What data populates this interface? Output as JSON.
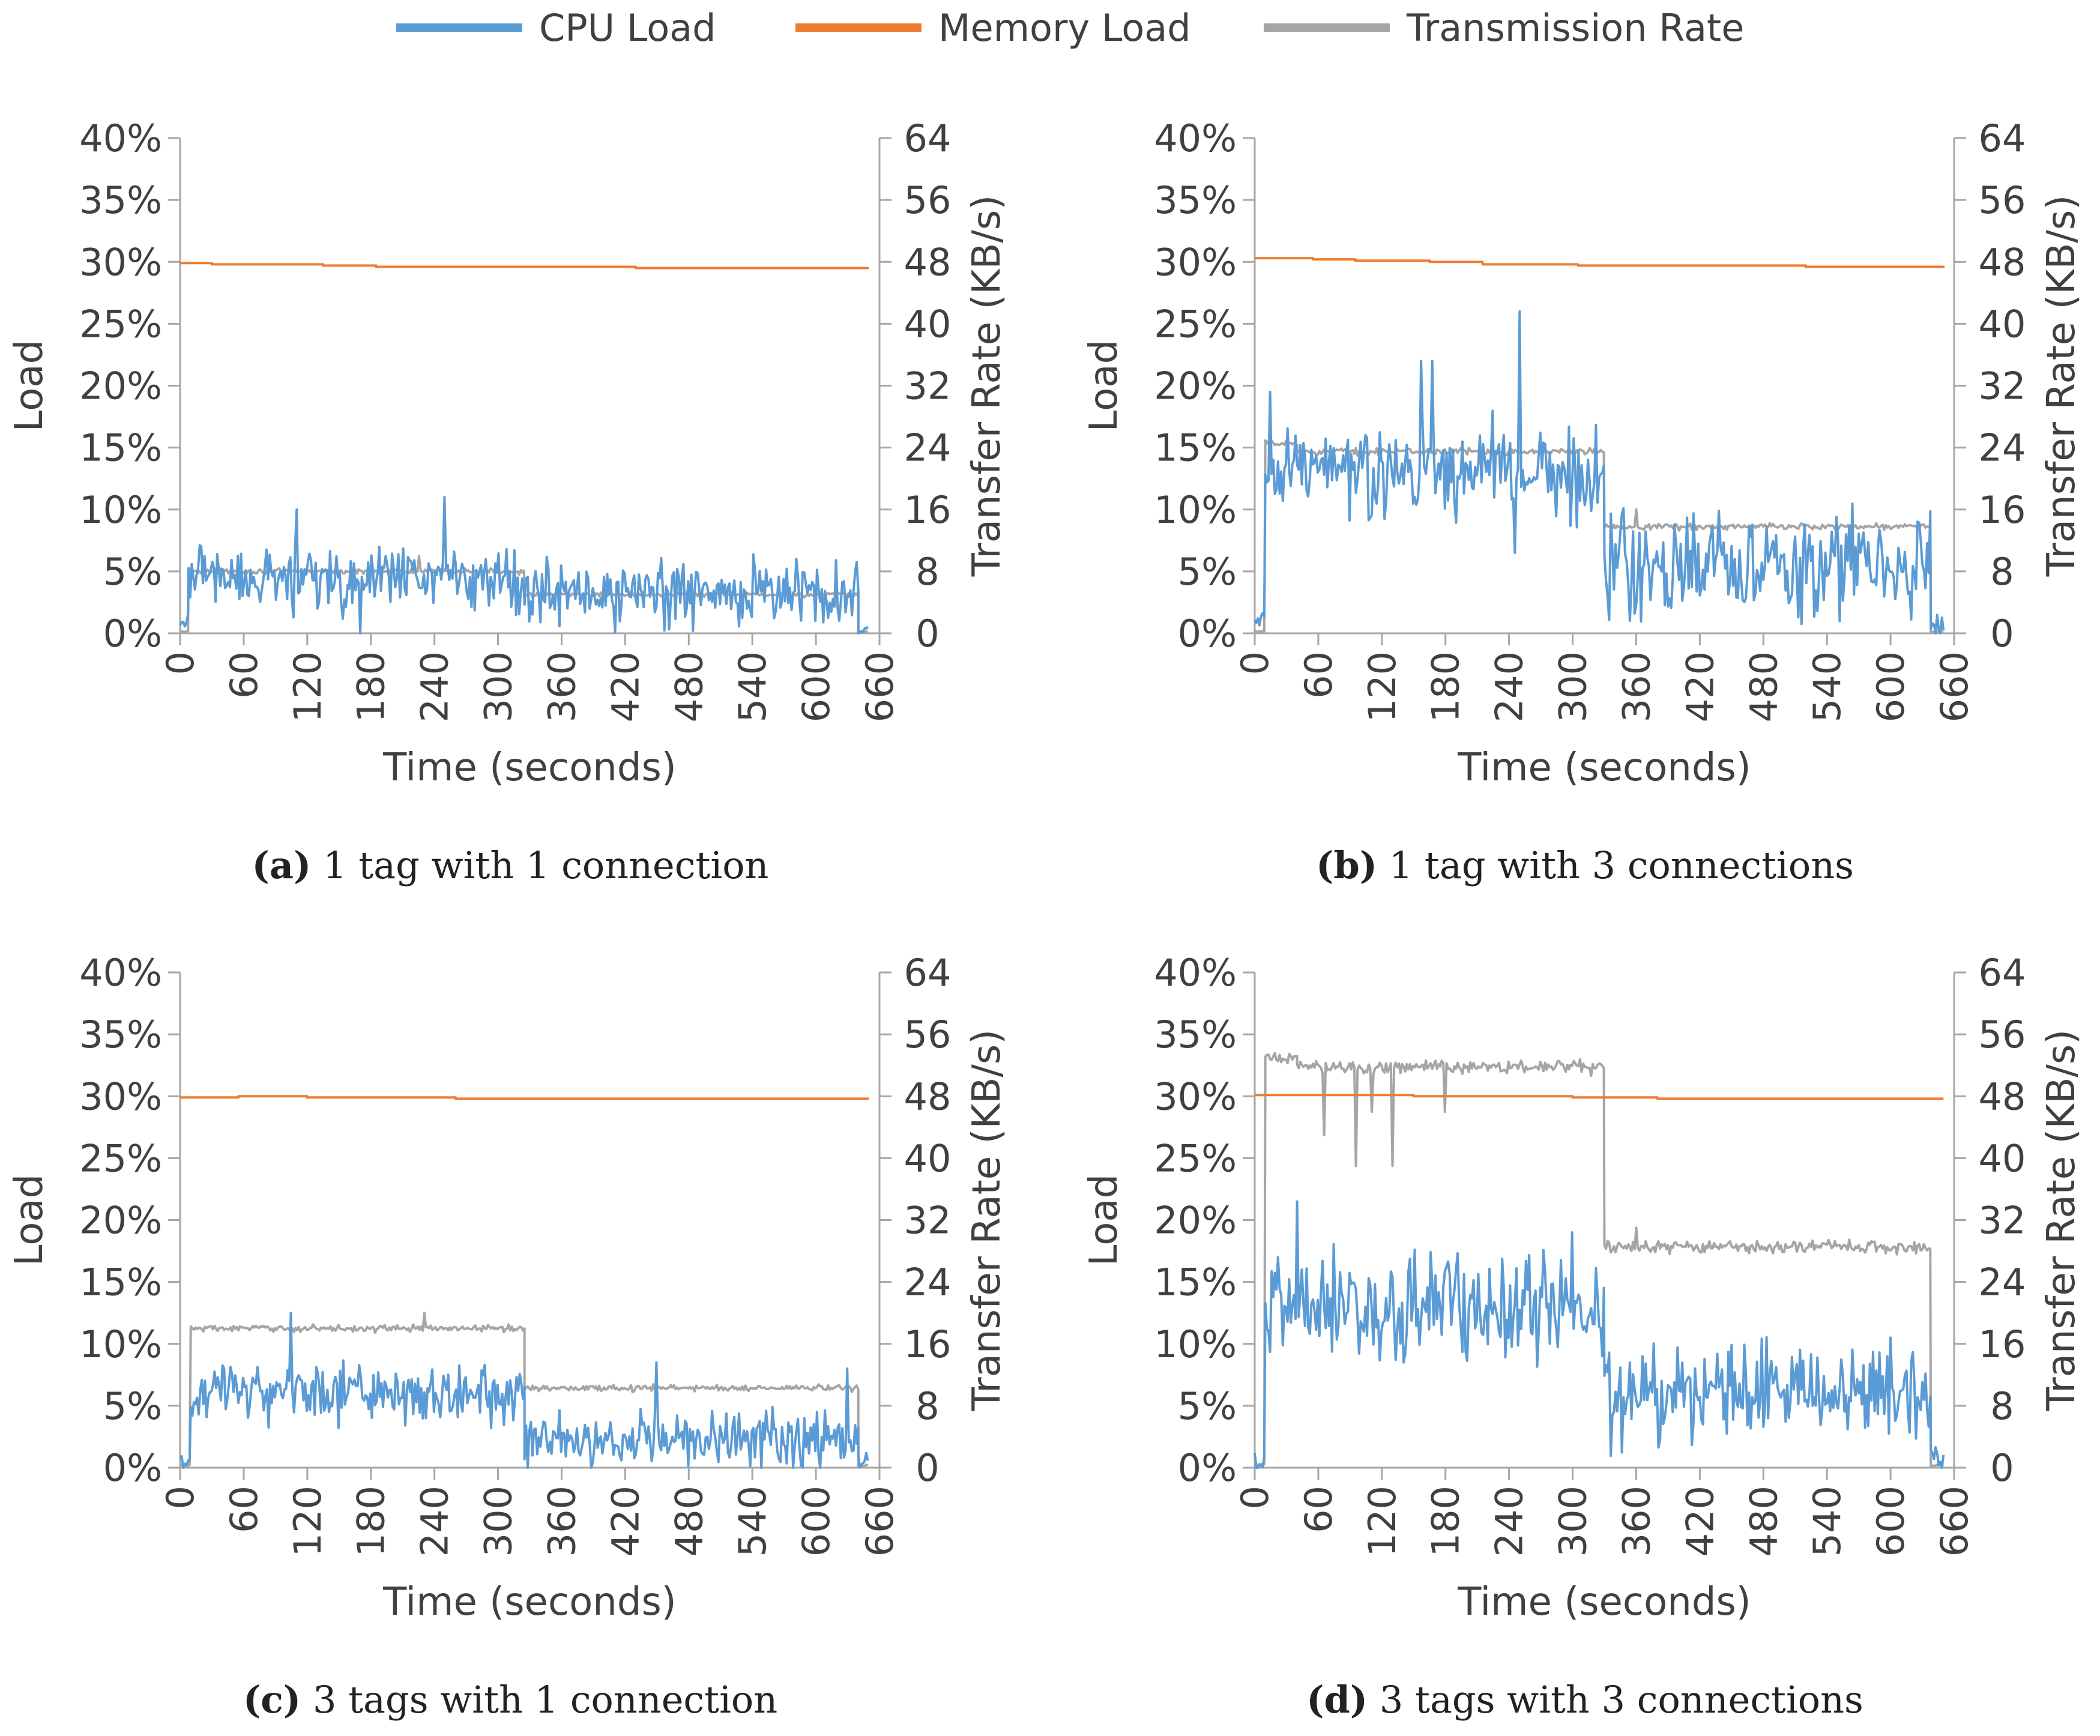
{
  "legend": {
    "items": [
      {
        "label": "CPU Load",
        "color": "#5b9bd5"
      },
      {
        "label": "Memory Load",
        "color": "#ed7d31"
      },
      {
        "label": "Transmission Rate",
        "color": "#a5a5a5"
      }
    ]
  },
  "chart_data": [
    {
      "type": "line",
      "panel_label": "(a)",
      "caption": "1 tag with 1 connection",
      "xlabel": "Time (seconds)",
      "ylabel": "Load",
      "y2label": "Transfer Rate (KB/s)",
      "xlim": [
        0,
        660
      ],
      "ylim": [
        0,
        40
      ],
      "y2lim": [
        0,
        64
      ],
      "x_ticks": [
        "0",
        "60",
        "120",
        "180",
        "240",
        "300",
        "360",
        "420",
        "480",
        "540",
        "600",
        "660"
      ],
      "y_ticks": [
        "0%",
        "5%",
        "10%",
        "15%",
        "20%",
        "25%",
        "30%",
        "35%",
        "40%"
      ],
      "y2_ticks": [
        "0",
        "8",
        "16",
        "24",
        "32",
        "40",
        "48",
        "56",
        "64"
      ],
      "series": [
        {
          "name": "CPU Load",
          "axis": "left",
          "segments": [
            [
              0,
              8,
              0.8
            ],
            [
              8,
              325,
              4.5
            ],
            [
              325,
              640,
              3.2
            ],
            [
              640,
              650,
              0.2
            ]
          ],
          "noise": 1.3,
          "spikes": [
            [
              110,
              10
            ],
            [
              250,
              11
            ],
            [
              170,
              0
            ],
            [
              20,
              7
            ]
          ]
        },
        {
          "name": "Memory Load",
          "axis": "left",
          "points": [
            [
              0,
              29.9
            ],
            [
              30,
              29.8
            ],
            [
              135,
              29.7
            ],
            [
              185,
              29.6
            ],
            [
              430,
              29.5
            ],
            [
              650,
              29.5
            ]
          ]
        },
        {
          "name": "Transmission Rate",
          "axis": "right",
          "segments": [
            [
              0,
              8,
              0.2
            ],
            [
              8,
              325,
              8.0
            ],
            [
              325,
              640,
              5.0
            ],
            [
              640,
              650,
              0.2
            ]
          ],
          "noise": 0.15,
          "spikes": [
            [
              225,
              10
            ]
          ]
        }
      ]
    },
    {
      "type": "line",
      "panel_label": "(b)",
      "caption": "1 tag with 3 connections",
      "xlabel": "Time (seconds)",
      "ylabel": "Load",
      "y2label": "Transfer Rate (KB/s)",
      "xlim": [
        0,
        660
      ],
      "ylim": [
        0,
        40
      ],
      "y2lim": [
        0,
        64
      ],
      "x_ticks": [
        "0",
        "60",
        "120",
        "180",
        "240",
        "300",
        "360",
        "420",
        "480",
        "540",
        "600",
        "660"
      ],
      "y_ticks": [
        "0%",
        "5%",
        "10%",
        "15%",
        "20%",
        "25%",
        "30%",
        "35%",
        "40%"
      ],
      "y2_ticks": [
        "0",
        "8",
        "16",
        "24",
        "32",
        "40",
        "48",
        "56",
        "64"
      ],
      "series": [
        {
          "name": "CPU Load",
          "axis": "left",
          "segments": [
            [
              0,
              10,
              1.0
            ],
            [
              10,
              330,
              13.0
            ],
            [
              330,
              638,
              5.5
            ],
            [
              638,
              650,
              0.5
            ]
          ],
          "noise": 2.0,
          "spikes": [
            [
              15,
              19.5
            ],
            [
              157,
              22
            ],
            [
              168,
              22
            ],
            [
              250,
              26
            ],
            [
              245,
              6.5
            ]
          ]
        },
        {
          "name": "Memory Load",
          "axis": "left",
          "points": [
            [
              0,
              30.3
            ],
            [
              55,
              30.2
            ],
            [
              95,
              30.1
            ],
            [
              165,
              30.0
            ],
            [
              215,
              29.8
            ],
            [
              305,
              29.7
            ],
            [
              520,
              29.6
            ],
            [
              650,
              29.5
            ]
          ]
        },
        {
          "name": "Transmission Rate",
          "axis": "right",
          "segments": [
            [
              0,
              10,
              0.2
            ],
            [
              10,
              40,
              24.5
            ],
            [
              40,
              330,
              23.5
            ],
            [
              330,
              638,
              13.8
            ],
            [
              638,
              650,
              0.2
            ]
          ],
          "noise": 0.2,
          "spikes": [
            [
              360,
              16
            ]
          ]
        }
      ]
    },
    {
      "type": "line",
      "panel_label": "(c)",
      "caption": "3 tags with 1 connection",
      "xlabel": "Time (seconds)",
      "ylabel": "Load",
      "y2label": "Transfer Rate (KB/s)",
      "xlim": [
        0,
        660
      ],
      "ylim": [
        0,
        40
      ],
      "y2lim": [
        0,
        64
      ],
      "x_ticks": [
        "0",
        "60",
        "120",
        "180",
        "240",
        "300",
        "360",
        "420",
        "480",
        "540",
        "600",
        "660"
      ],
      "y_ticks": [
        "0%",
        "5%",
        "10%",
        "15%",
        "20%",
        "25%",
        "30%",
        "35%",
        "40%"
      ],
      "y2_ticks": [
        "0",
        "8",
        "16",
        "24",
        "32",
        "40",
        "48",
        "56",
        "64"
      ],
      "series": [
        {
          "name": "CPU Load",
          "axis": "left",
          "segments": [
            [
              0,
              10,
              0.5
            ],
            [
              10,
              325,
              6.0
            ],
            [
              325,
              640,
              2.3
            ],
            [
              640,
              650,
              0.5
            ]
          ],
          "noise": 1.1,
          "spikes": [
            [
              105,
              12.5
            ],
            [
              450,
              8.5
            ],
            [
              630,
              8
            ]
          ]
        },
        {
          "name": "Memory Load",
          "axis": "left",
          "points": [
            [
              0,
              29.9
            ],
            [
              55,
              30.0
            ],
            [
              120,
              29.9
            ],
            [
              260,
              29.8
            ],
            [
              650,
              29.8
            ]
          ]
        },
        {
          "name": "Transmission Rate",
          "axis": "right",
          "segments": [
            [
              0,
              10,
              0.3
            ],
            [
              10,
              325,
              18.0
            ],
            [
              325,
              640,
              10.3
            ],
            [
              640,
              650,
              0.3
            ]
          ],
          "noise": 0.2,
          "spikes": [
            [
              230,
              20
            ]
          ]
        }
      ]
    },
    {
      "type": "line",
      "panel_label": "(d)",
      "caption": "3 tags with 3 connections",
      "xlabel": "Time (seconds)",
      "ylabel": "Load",
      "y2label": "Transfer Rate (KB/s)",
      "xlim": [
        0,
        660
      ],
      "ylim": [
        0,
        40
      ],
      "y2lim": [
        0,
        64
      ],
      "x_ticks": [
        "0",
        "60",
        "120",
        "180",
        "240",
        "300",
        "360",
        "420",
        "480",
        "540",
        "600",
        "660"
      ],
      "y_ticks": [
        "0%",
        "5%",
        "10%",
        "15%",
        "20%",
        "25%",
        "30%",
        "35%",
        "40%"
      ],
      "y2_ticks": [
        "0",
        "8",
        "16",
        "24",
        "32",
        "40",
        "48",
        "56",
        "64"
      ],
      "series": [
        {
          "name": "CPU Load",
          "axis": "left",
          "segments": [
            [
              0,
              10,
              0.5
            ],
            [
              10,
              330,
              13.0
            ],
            [
              330,
              638,
              6.0
            ],
            [
              638,
              650,
              0.5
            ]
          ],
          "noise": 2.0,
          "spikes": [
            [
              40,
              21.5
            ],
            [
              300,
              19
            ],
            [
              600,
              10.5
            ]
          ]
        },
        {
          "name": "Memory Load",
          "axis": "left",
          "points": [
            [
              0,
              30.1
            ],
            [
              80,
              30.1
            ],
            [
              150,
              30.0
            ],
            [
              300,
              29.9
            ],
            [
              380,
              29.8
            ],
            [
              650,
              29.8
            ]
          ]
        },
        {
          "name": "Transmission Rate",
          "axis": "right",
          "segments": [
            [
              0,
              10,
              0.3
            ],
            [
              10,
              40,
              53.0
            ],
            [
              40,
              330,
              51.8
            ],
            [
              330,
              638,
              28.5
            ],
            [
              638,
              650,
              0.3
            ]
          ],
          "noise": 0.4,
          "spikes": [
            [
              65,
              43
            ],
            [
              95,
              39
            ],
            [
              130,
              39
            ],
            [
              180,
              46
            ],
            [
              110,
              46
            ],
            [
              360,
              31
            ]
          ]
        }
      ]
    }
  ]
}
